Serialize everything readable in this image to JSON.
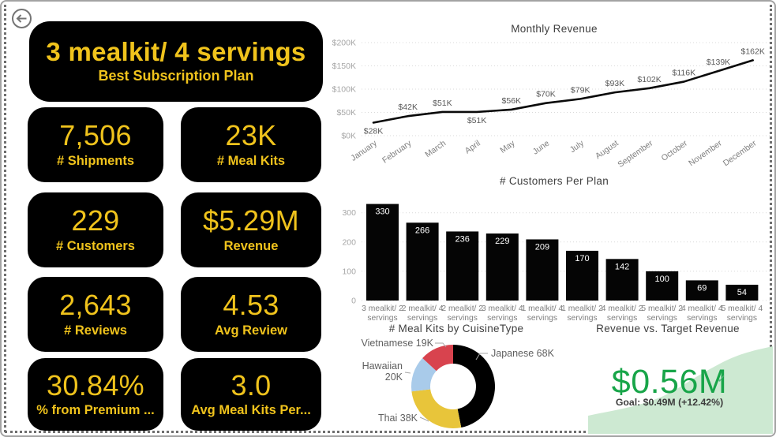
{
  "back_button": {
    "icon": "back-arrow"
  },
  "colors": {
    "card_bg": "#000000",
    "card_text": "#F0C31C",
    "axis_label": "#a6a6a6",
    "category_label": "#7f7f7f",
    "data_label": "#595959",
    "chart_title": "#3f3f3f",
    "line_color": "#0a0a0a",
    "bar_color": "#050505",
    "bar_value_label": "#ffffff",
    "kpi_green": "#18a549",
    "kpi_area": "#cde9d2",
    "kpi_check": "#55b57b"
  },
  "kpi_cards": {
    "best_plan": {
      "value": "3 mealkit/ 4 servings",
      "label": "Best Subscription Plan"
    },
    "cards": [
      {
        "value": "7,506",
        "label": "# Shipments"
      },
      {
        "value": "23K",
        "label": "# Meal Kits"
      },
      {
        "value": "229",
        "label": "# Customers"
      },
      {
        "value": "$5.29M",
        "label": "Revenue"
      },
      {
        "value": "2,643",
        "label": "# Reviews"
      },
      {
        "value": "4.53",
        "label": "Avg Review"
      },
      {
        "value": "30.84%",
        "label": "% from Premium ..."
      },
      {
        "value": "3.0",
        "label": "Avg Meal Kits Per..."
      }
    ]
  },
  "chart_data": [
    {
      "type": "line",
      "title": "Monthly Revenue",
      "x": [
        "January",
        "February",
        "March",
        "April",
        "May",
        "June",
        "July",
        "August",
        "September",
        "October",
        "November",
        "December"
      ],
      "values": [
        28,
        42,
        51,
        51,
        56,
        70,
        79,
        93,
        102,
        116,
        139,
        162
      ],
      "data_labels": [
        "$28K",
        "$42K",
        "$51K",
        "$51K",
        "$56K",
        "$70K",
        "$79K",
        "$93K",
        "$102K",
        "$116K",
        "$139K",
        "$162K"
      ],
      "label_below": [
        true,
        false,
        false,
        true,
        false,
        false,
        false,
        false,
        false,
        false,
        false,
        false
      ],
      "ylim": [
        0,
        200
      ],
      "ytick_labels": [
        "$0K",
        "$50K",
        "$100K",
        "$150K",
        "$200K"
      ],
      "ytick_values": [
        0,
        50,
        100,
        150,
        200
      ],
      "grid": "dotted",
      "legend": "none"
    },
    {
      "type": "bar",
      "title": "# Customers Per Plan",
      "categories": [
        "3 mealkit/ 2 servings",
        "2 mealkit/ 4 servings",
        "2 mealkit/ 2 servings",
        "3 mealkit/ 4 servings",
        "1 mealkit/ 4 servings",
        "1 mealkit/ 2 servings",
        "4 mealkit/ 2 servings",
        "5 mealkit/ 2 servings",
        "4 mealkit/ 4 servings",
        "5 mealkit/ 4 servings"
      ],
      "values": [
        330,
        266,
        236,
        229,
        209,
        170,
        142,
        100,
        69,
        54
      ],
      "ylim": [
        0,
        360
      ],
      "ytick_values": [
        0,
        100,
        200,
        300
      ],
      "grid": "dotted",
      "legend": "none"
    },
    {
      "type": "pie",
      "title": "# Meal Kits by CuisineType",
      "donut": true,
      "slices": [
        {
          "label": "Japanese",
          "value": 68,
          "value_label": "68K",
          "color": "#000000"
        },
        {
          "label": "Thai",
          "value": 38,
          "value_label": "38K",
          "color": "#e8c53a"
        },
        {
          "label": "Hawaiian",
          "value": 20,
          "value_label": "20K",
          "color": "#a9cbea"
        },
        {
          "label": "Vietnamese",
          "value": 19,
          "value_label": "19K",
          "color": "#d8434e"
        }
      ]
    },
    {
      "type": "area",
      "title": "Revenue vs. Target Revenue",
      "value": "$0.56M",
      "goal_text": "Goal: $0.49M (+12.42%)",
      "status_icon": "check-icon"
    }
  ]
}
